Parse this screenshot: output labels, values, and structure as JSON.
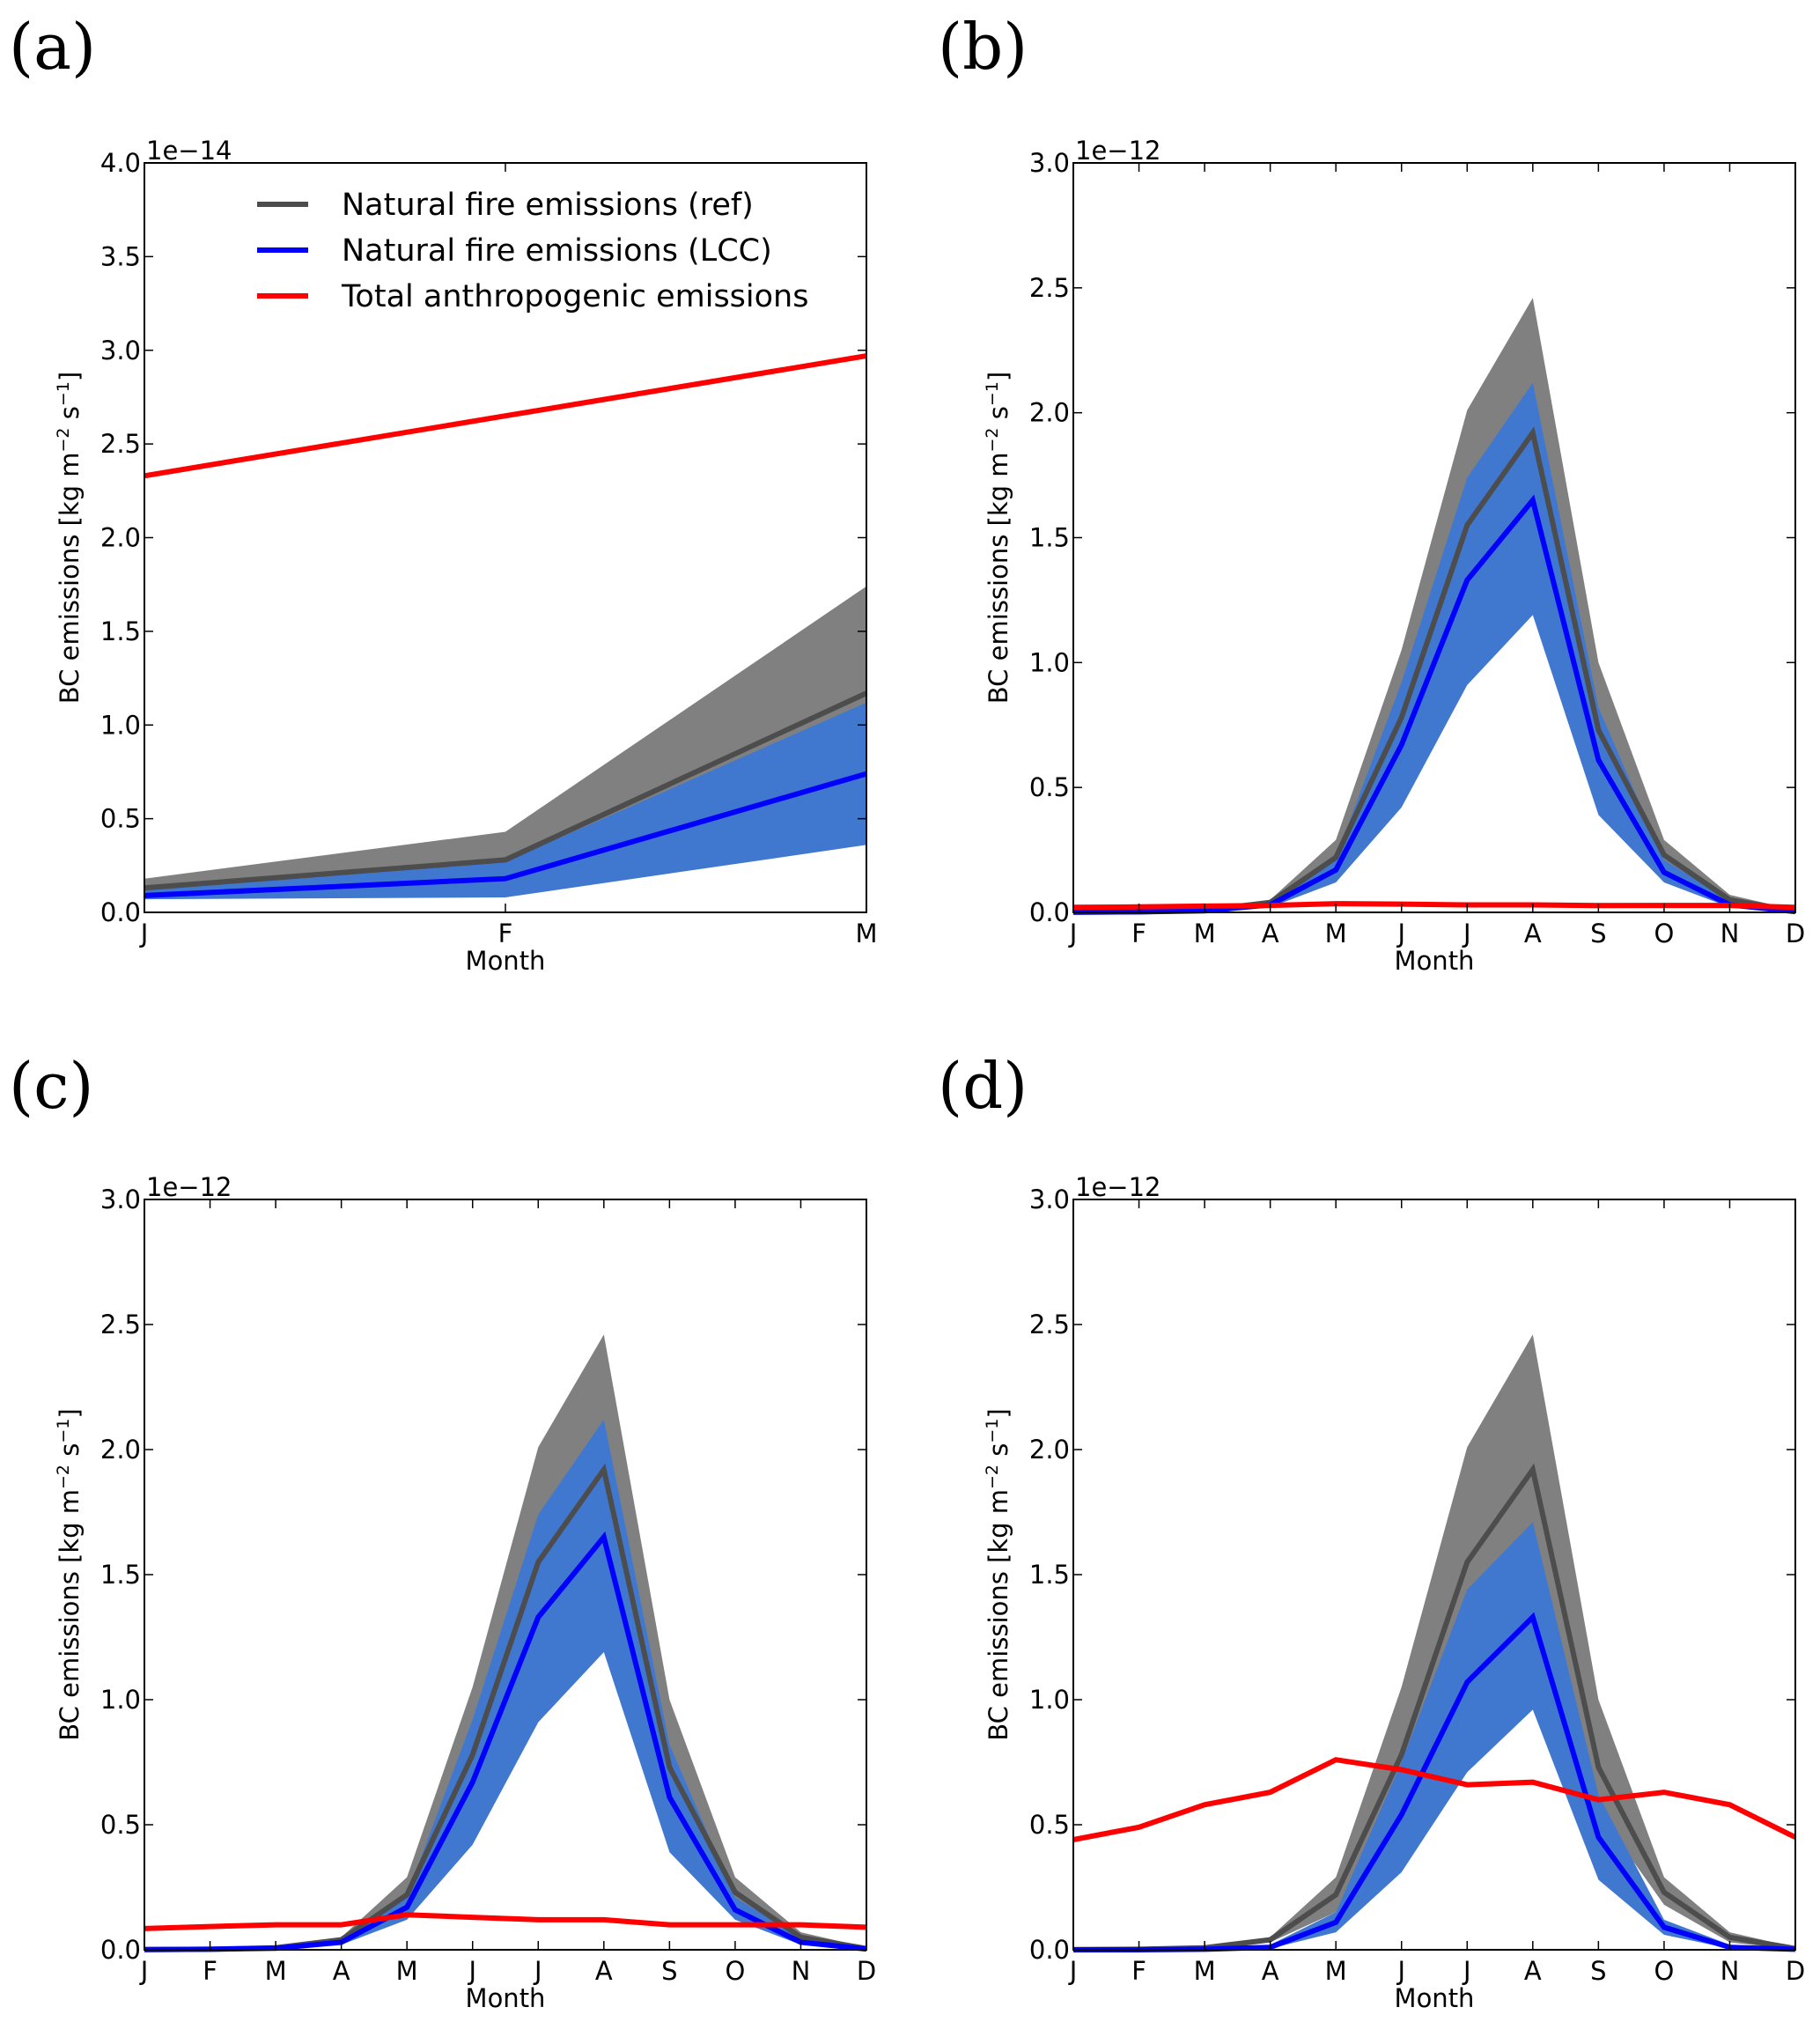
{
  "figure": {
    "panels": [
      "(a)",
      "(b)",
      "(c)",
      "(d)"
    ]
  },
  "chart_data": [
    {
      "type": "line",
      "panel": "(a)",
      "title": "",
      "xlabel": "Month",
      "ylabel": "BC emissions [kg m⁻² s⁻¹]",
      "ylabel_parts": {
        "pre": "BC emissions [kg m",
        "sup1": "−2",
        "mid": " s",
        "sup2": "−1",
        "post": "]"
      },
      "offset_text": "1e−14",
      "categories": [
        "J",
        "F",
        "M"
      ],
      "ylim": [
        0,
        4.0
      ],
      "yticks": [
        "0.0",
        "0.5",
        "1.0",
        "1.5",
        "2.0",
        "2.5",
        "3.0",
        "3.5",
        "4.0"
      ],
      "ytick_values": [
        0,
        0.5,
        1.0,
        1.5,
        2.0,
        2.5,
        3.0,
        3.5,
        4.0
      ],
      "legend": {
        "placement": "upper-center",
        "entries": [
          {
            "label": "Natural fire emissions (ref)",
            "color": "#4d4d4d"
          },
          {
            "label": "Natural fire emissions (LCC)",
            "color": "#0000ff"
          },
          {
            "label": "Total anthropogenic emissions",
            "color": "#ff0000"
          }
        ]
      },
      "bands": [
        {
          "name": "ref-range",
          "color": "#808080",
          "lower": [
            0.1,
            0.2,
            1.1
          ],
          "upper": [
            0.18,
            0.43,
            1.74
          ]
        },
        {
          "name": "lcc-range",
          "color": "#4078d0",
          "lower": [
            0.07,
            0.08,
            0.36
          ],
          "upper": [
            0.12,
            0.27,
            1.12
          ]
        }
      ],
      "series": [
        {
          "name": "Natural fire emissions (ref)",
          "color": "#4d4d4d",
          "values": [
            0.13,
            0.28,
            1.17
          ]
        },
        {
          "name": "Natural fire emissions (LCC)",
          "color": "#0000ff",
          "values": [
            0.09,
            0.18,
            0.74
          ]
        },
        {
          "name": "Total anthropogenic emissions",
          "color": "#ff0000",
          "values": [
            2.33,
            2.65,
            2.97
          ]
        }
      ]
    },
    {
      "type": "line",
      "panel": "(b)",
      "xlabel": "Month",
      "ylabel_parts": {
        "pre": "BC emissions [kg m",
        "sup1": "−2",
        "mid": " s",
        "sup2": "−1",
        "post": "]"
      },
      "offset_text": "1e−12",
      "categories": [
        "J",
        "F",
        "M",
        "A",
        "M",
        "J",
        "J",
        "A",
        "S",
        "O",
        "N",
        "D"
      ],
      "ylim": [
        0,
        3.0
      ],
      "yticks": [
        "0.0",
        "0.5",
        "1.0",
        "1.5",
        "2.0",
        "2.5",
        "3.0"
      ],
      "ytick_values": [
        0,
        0.5,
        1.0,
        1.5,
        2.0,
        2.5,
        3.0
      ],
      "bands": [
        {
          "name": "ref-range",
          "color": "#808080",
          "lower": [
            0.0,
            0.0,
            0.005,
            0.03,
            0.15,
            0.6,
            1.25,
            1.6,
            0.55,
            0.18,
            0.03,
            0.0
          ],
          "upper": [
            0.002,
            0.003,
            0.01,
            0.05,
            0.29,
            1.05,
            2.01,
            2.46,
            1.0,
            0.29,
            0.07,
            0.01
          ]
        },
        {
          "name": "lcc-range",
          "color": "#4078d0",
          "lower": [
            0.0,
            0.0,
            0.003,
            0.02,
            0.12,
            0.42,
            0.91,
            1.19,
            0.39,
            0.12,
            0.02,
            0.0
          ],
          "upper": [
            0.002,
            0.003,
            0.008,
            0.04,
            0.22,
            0.92,
            1.74,
            2.12,
            0.82,
            0.21,
            0.05,
            0.01
          ]
        }
      ],
      "series": [
        {
          "name": "Natural fire emissions (ref)",
          "color": "#4d4d4d",
          "values": [
            0.001,
            0.002,
            0.008,
            0.04,
            0.22,
            0.78,
            1.55,
            1.92,
            0.73,
            0.23,
            0.05,
            0.005
          ]
        },
        {
          "name": "Natural fire emissions (LCC)",
          "color": "#0000ff",
          "values": [
            0.001,
            0.002,
            0.006,
            0.03,
            0.17,
            0.67,
            1.33,
            1.65,
            0.61,
            0.16,
            0.03,
            0.003
          ]
        },
        {
          "name": "Total anthropogenic emissions",
          "color": "#ff0000",
          "values": [
            0.02,
            0.022,
            0.025,
            0.028,
            0.035,
            0.033,
            0.03,
            0.03,
            0.027,
            0.028,
            0.028,
            0.02
          ]
        }
      ]
    },
    {
      "type": "line",
      "panel": "(c)",
      "xlabel": "Month",
      "ylabel_parts": {
        "pre": "BC emissions [kg m",
        "sup1": "−2",
        "mid": " s",
        "sup2": "−1",
        "post": "]"
      },
      "offset_text": "1e−12",
      "categories": [
        "J",
        "F",
        "M",
        "A",
        "M",
        "J",
        "J",
        "A",
        "S",
        "O",
        "N",
        "D"
      ],
      "ylim": [
        0,
        3.0
      ],
      "yticks": [
        "0.0",
        "0.5",
        "1.0",
        "1.5",
        "2.0",
        "2.5",
        "3.0"
      ],
      "ytick_values": [
        0,
        0.5,
        1.0,
        1.5,
        2.0,
        2.5,
        3.0
      ],
      "bands": [
        {
          "name": "ref-range",
          "color": "#808080",
          "lower": [
            0.0,
            0.0,
            0.005,
            0.03,
            0.15,
            0.6,
            1.25,
            1.6,
            0.55,
            0.18,
            0.03,
            0.0
          ],
          "upper": [
            0.002,
            0.003,
            0.01,
            0.05,
            0.29,
            1.05,
            2.01,
            2.46,
            1.0,
            0.29,
            0.07,
            0.01
          ]
        },
        {
          "name": "lcc-range",
          "color": "#4078d0",
          "lower": [
            0.0,
            0.0,
            0.003,
            0.02,
            0.12,
            0.42,
            0.91,
            1.19,
            0.39,
            0.12,
            0.02,
            0.0
          ],
          "upper": [
            0.002,
            0.003,
            0.008,
            0.04,
            0.22,
            0.92,
            1.74,
            2.12,
            0.82,
            0.21,
            0.05,
            0.01
          ]
        }
      ],
      "series": [
        {
          "name": "Natural fire emissions (ref)",
          "color": "#4d4d4d",
          "values": [
            0.001,
            0.002,
            0.008,
            0.04,
            0.22,
            0.78,
            1.55,
            1.92,
            0.73,
            0.23,
            0.05,
            0.005
          ]
        },
        {
          "name": "Natural fire emissions (LCC)",
          "color": "#0000ff",
          "values": [
            0.001,
            0.002,
            0.006,
            0.03,
            0.17,
            0.67,
            1.33,
            1.65,
            0.61,
            0.16,
            0.03,
            0.003
          ]
        },
        {
          "name": "Total anthropogenic emissions",
          "color": "#ff0000",
          "values": [
            0.085,
            0.093,
            0.1,
            0.1,
            0.14,
            0.13,
            0.12,
            0.12,
            0.1,
            0.1,
            0.1,
            0.09
          ]
        }
      ]
    },
    {
      "type": "line",
      "panel": "(d)",
      "xlabel": "Month",
      "ylabel_parts": {
        "pre": "BC emissions [kg m",
        "sup1": "−2",
        "mid": " s",
        "sup2": "−1",
        "post": "]"
      },
      "offset_text": "1e−12",
      "categories": [
        "J",
        "F",
        "M",
        "A",
        "M",
        "J",
        "J",
        "A",
        "S",
        "O",
        "N",
        "D"
      ],
      "ylim": [
        0,
        3.0
      ],
      "yticks": [
        "0.0",
        "0.5",
        "1.0",
        "1.5",
        "2.0",
        "2.5",
        "3.0"
      ],
      "ytick_values": [
        0,
        0.5,
        1.0,
        1.5,
        2.0,
        2.5,
        3.0
      ],
      "bands": [
        {
          "name": "ref-range",
          "color": "#808080",
          "lower": [
            0.0,
            0.0,
            0.005,
            0.03,
            0.15,
            0.6,
            1.25,
            1.6,
            0.55,
            0.18,
            0.03,
            0.0
          ],
          "upper": [
            0.002,
            0.003,
            0.01,
            0.05,
            0.29,
            1.05,
            2.01,
            2.46,
            1.0,
            0.29,
            0.07,
            0.01
          ]
        },
        {
          "name": "lcc-range",
          "color": "#4078d0",
          "lower": [
            0.0,
            0.0,
            0.0,
            0.005,
            0.07,
            0.31,
            0.71,
            0.96,
            0.28,
            0.06,
            0.005,
            0.0
          ],
          "upper": [
            0.001,
            0.002,
            0.005,
            0.02,
            0.15,
            0.75,
            1.44,
            1.71,
            0.62,
            0.12,
            0.02,
            0.005
          ]
        }
      ],
      "series": [
        {
          "name": "Natural fire emissions (ref)",
          "color": "#4d4d4d",
          "values": [
            0.001,
            0.002,
            0.008,
            0.04,
            0.22,
            0.78,
            1.55,
            1.92,
            0.73,
            0.23,
            0.05,
            0.005
          ]
        },
        {
          "name": "Natural fire emissions (LCC)",
          "color": "#0000ff",
          "values": [
            0.0,
            0.0,
            0.002,
            0.01,
            0.11,
            0.54,
            1.07,
            1.33,
            0.45,
            0.09,
            0.01,
            0.002
          ]
        },
        {
          "name": "Total anthropogenic emissions",
          "color": "#ff0000",
          "values": [
            0.44,
            0.49,
            0.58,
            0.63,
            0.76,
            0.72,
            0.66,
            0.67,
            0.6,
            0.63,
            0.58,
            0.45
          ]
        }
      ]
    }
  ]
}
